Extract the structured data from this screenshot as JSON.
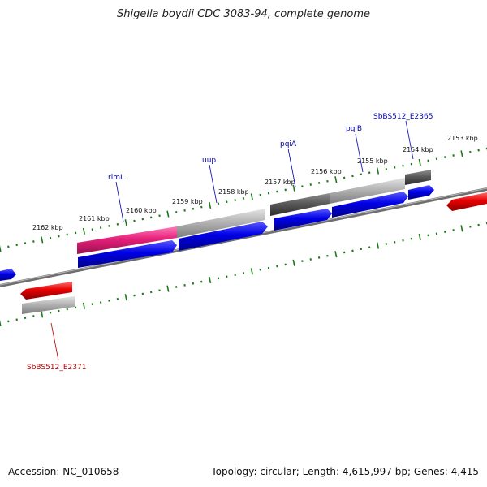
{
  "title": "Shigella boydii CDC 3083-94, complete genome",
  "footer": {
    "accession": "Accession: NC_010658",
    "info": "Topology: circular; Length: 4,615,997 bp; Genes: 4,415"
  },
  "ticks": [
    "2153 kbp",
    "2154 kbp",
    "2155 kbp",
    "2156 kbp",
    "2157 kbp",
    "2158 kbp",
    "2159 kbp",
    "2160 kbp",
    "2161 kbp",
    "2162 kbp"
  ],
  "gene_labels": [
    "SbBS512_E2365",
    "pqiB",
    "pqiA",
    "uup",
    "rlmL",
    "SbBS512_E2371"
  ],
  "colors": {
    "forward_cds": "#0000e6",
    "reverse_cds": "#e60000",
    "pink_feature": "#e6207a",
    "light_gray_feature": "#b4b4b4",
    "dark_gray_feature": "#5a5a5a",
    "backbone": "#7a7a7a",
    "tick": "#1a7a1a",
    "label_blue": "#0000b0",
    "label_red": "#b00000"
  }
}
